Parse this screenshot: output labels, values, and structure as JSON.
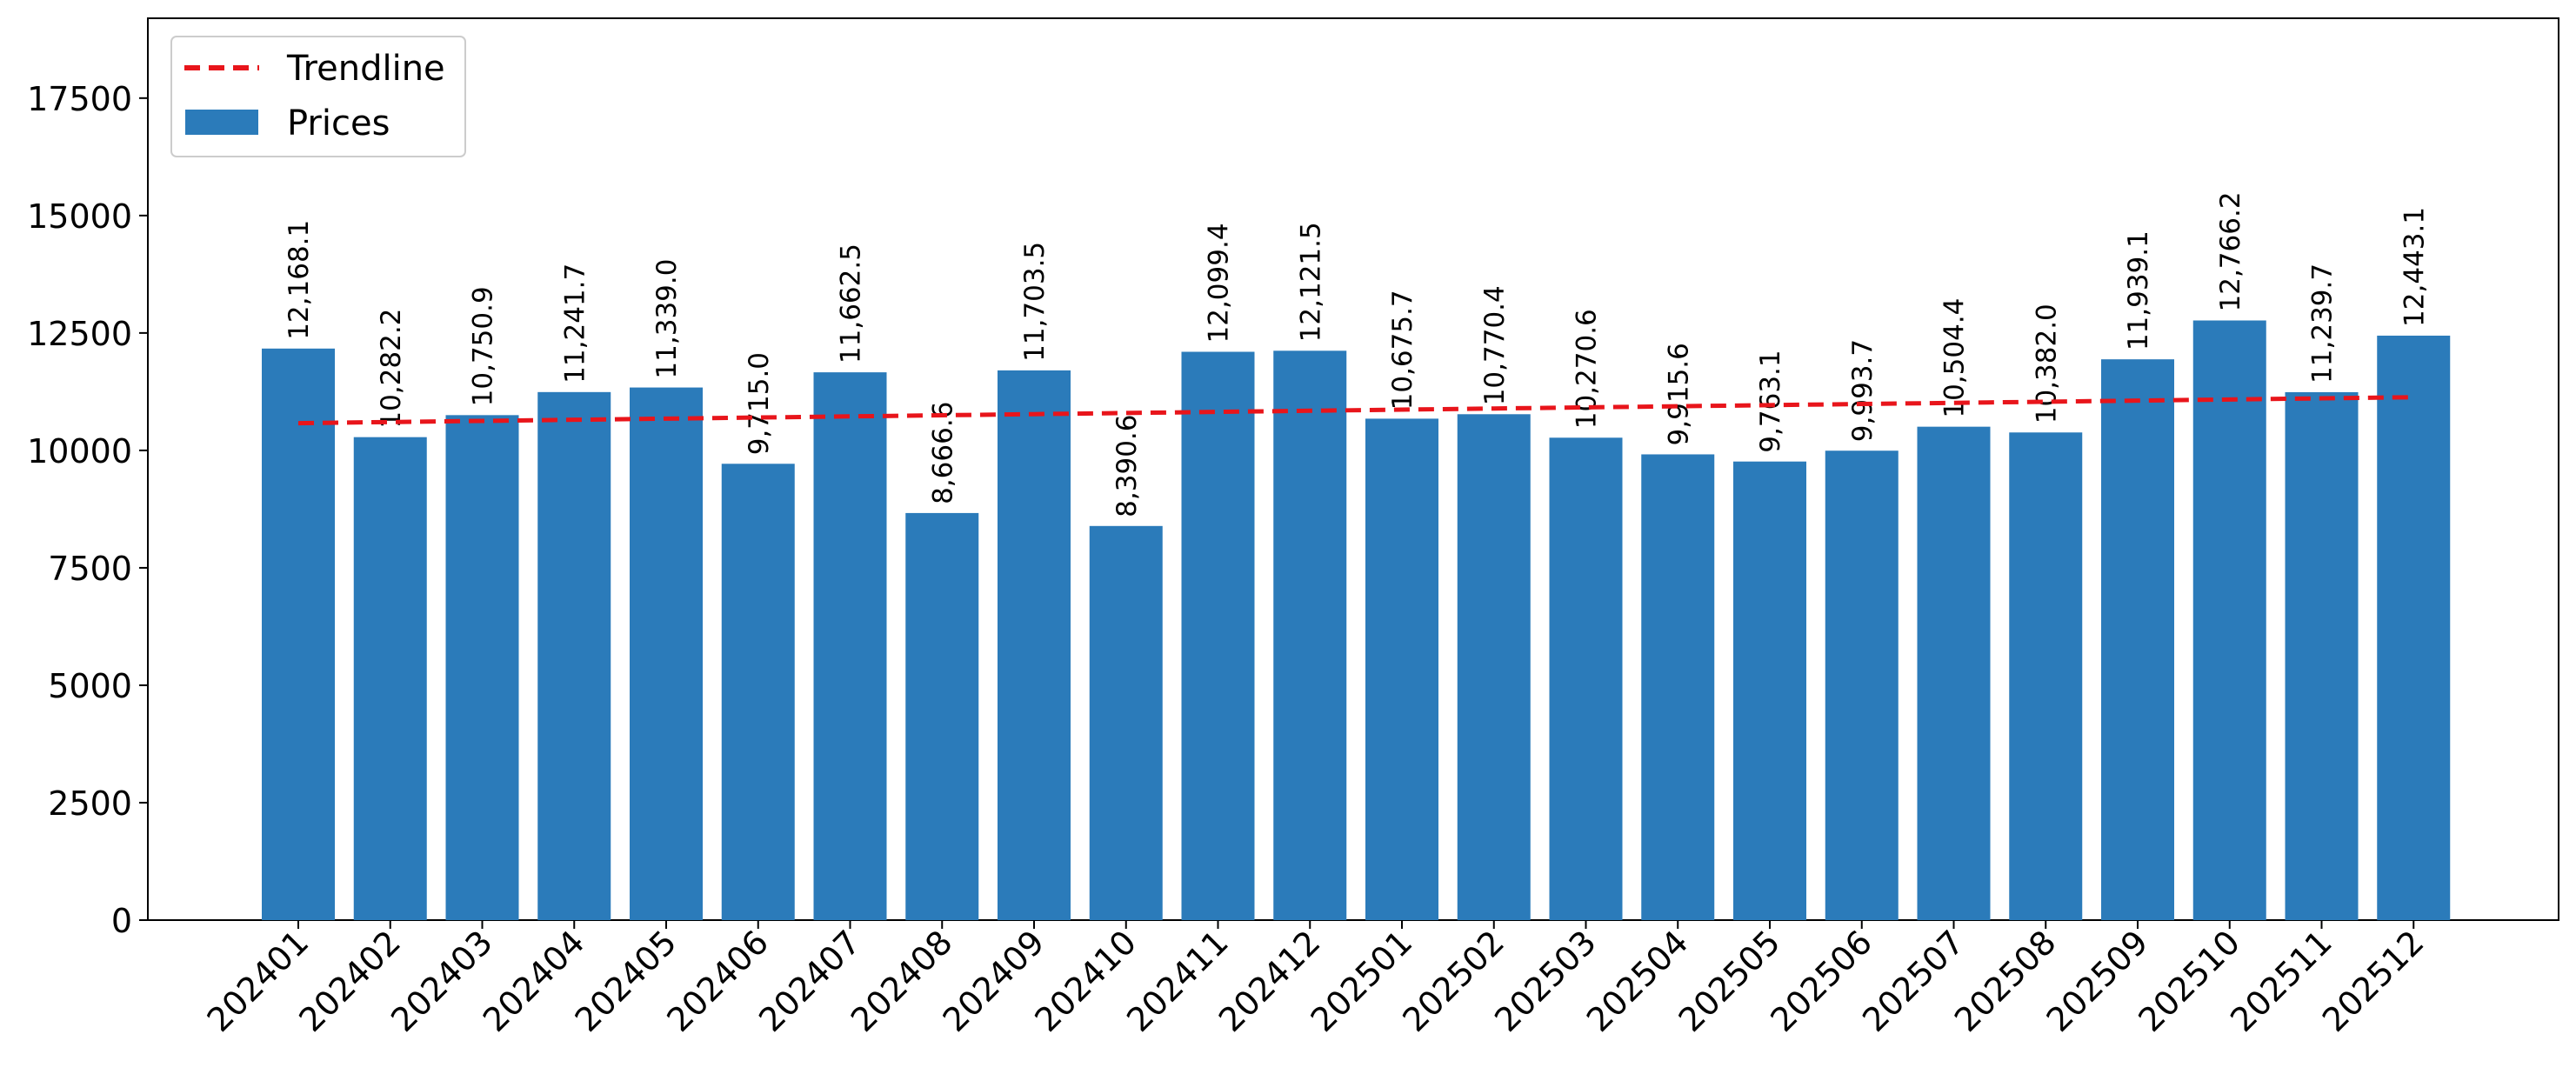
{
  "chart_data": {
    "type": "bar",
    "categories": [
      "202401",
      "202402",
      "202403",
      "202404",
      "202405",
      "202406",
      "202407",
      "202408",
      "202409",
      "202410",
      "202411",
      "202412",
      "202501",
      "202502",
      "202503",
      "202504",
      "202505",
      "202506",
      "202507",
      "202508",
      "202509",
      "202510",
      "202511",
      "202512"
    ],
    "series": [
      {
        "name": "Prices",
        "color": "#2b7bba",
        "values": [
          12168.1,
          10282.2,
          10750.9,
          11241.7,
          11339.0,
          9715.0,
          11662.5,
          8666.6,
          11703.5,
          8390.6,
          12099.4,
          12121.5,
          10675.7,
          10770.4,
          10270.6,
          9915.6,
          9763.1,
          9993.7,
          10504.4,
          10382.0,
          11939.1,
          12766.2,
          11239.7,
          12443.1
        ],
        "data_labels": [
          "12,168.1",
          "10,282.2",
          "10,750.9",
          "11,241.7",
          "11,339.0",
          "9,715.0",
          "11,662.5",
          "8,666.6",
          "11,703.5",
          "8,390.6",
          "12,099.4",
          "12,121.5",
          "10,675.7",
          "10,770.4",
          "10,270.6",
          "9,915.6",
          "9,763.1",
          "9,993.7",
          "10,504.4",
          "10,382.0",
          "11,939.1",
          "12,766.2",
          "11,239.7",
          "12,443.1"
        ]
      },
      {
        "name": "Trendline",
        "kind": "line",
        "style": "dashed",
        "color": "#e8151b",
        "values": [
          10580,
          10604,
          10628,
          10652,
          10676,
          10700,
          10724,
          10748,
          10772,
          10796,
          10820,
          10844,
          10868,
          10892,
          10916,
          10940,
          10964,
          10988,
          11012,
          11036,
          11060,
          11084,
          11108,
          11132
        ]
      }
    ],
    "yticks": [
      "0",
      "2500",
      "5000",
      "7500",
      "10000",
      "12500",
      "15000",
      "17500"
    ],
    "ylim": [
      0,
      19200
    ],
    "title": "",
    "xlabel": "",
    "ylabel": "",
    "legend": {
      "position": "top-left",
      "entries": [
        {
          "label": "Trendline",
          "marker": "dashed-line",
          "color": "#e8151b"
        },
        {
          "label": "Prices",
          "marker": "bar",
          "color": "#2b7bba"
        }
      ]
    },
    "grid": false
  }
}
